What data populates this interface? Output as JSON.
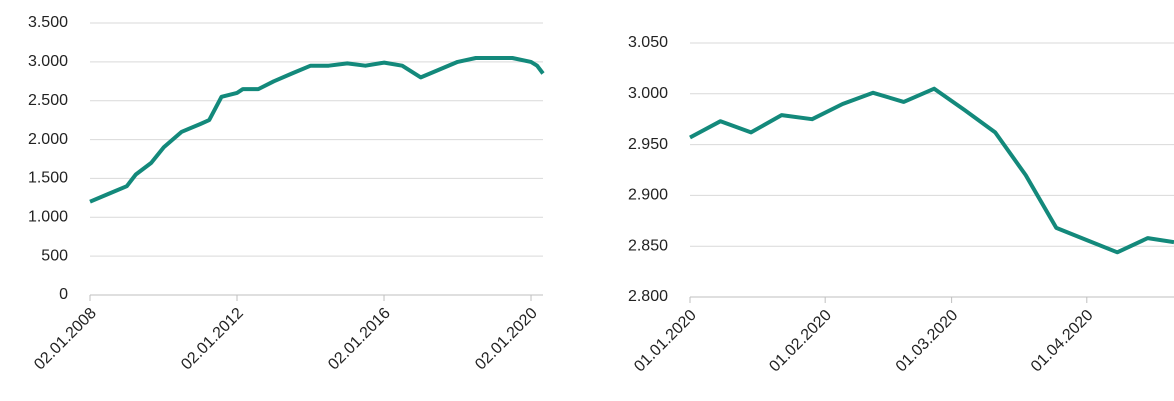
{
  "chart_data": [
    {
      "type": "line",
      "x": [
        "2008-01-02",
        "2008-07-01",
        "2009-01-02",
        "2009-04-01",
        "2009-09-01",
        "2010-01-04",
        "2010-07-01",
        "2011-01-03",
        "2011-04-01",
        "2011-08-01",
        "2012-01-02",
        "2012-03-01",
        "2012-08-01",
        "2013-01-02",
        "2013-07-01",
        "2014-01-02",
        "2014-07-01",
        "2015-01-02",
        "2015-07-01",
        "2016-01-04",
        "2016-07-01",
        "2017-01-02",
        "2017-07-03",
        "2018-01-02",
        "2018-07-02",
        "2019-01-02",
        "2019-07-01",
        "2020-01-02",
        "2020-03-02",
        "2020-04-30"
      ],
      "series": [
        {
          "color": "#13897b",
          "values": [
            1200,
            1300,
            1400,
            1550,
            1700,
            1900,
            2100,
            2200,
            2250,
            2550,
            2600,
            2650,
            2650,
            2750,
            2850,
            2950,
            2950,
            2980,
            2950,
            2990,
            2950,
            2800,
            2900,
            3000,
            3050,
            3050,
            3050,
            3000,
            2950,
            2850
          ]
        }
      ],
      "xlim": [
        "2008-01-02",
        "2020-04-30"
      ],
      "xticks": [
        {
          "value": "2008-01-02",
          "label": "02.01.2008"
        },
        {
          "value": "2012-01-02",
          "label": "02.01.2012"
        },
        {
          "value": "2016-01-02",
          "label": "02.01.2016"
        },
        {
          "value": "2020-01-02",
          "label": "02.01.2020"
        }
      ],
      "ylim": [
        0,
        3500
      ],
      "yticks": [
        0,
        {
          "value": 500,
          "label": "500"
        },
        {
          "value": 1000,
          "label": "1.000"
        },
        {
          "value": 1500,
          "label": "1.500"
        },
        {
          "value": 2000,
          "label": "2.000"
        },
        {
          "value": 2500,
          "label": "2.500"
        },
        {
          "value": 3000,
          "label": "3.000"
        },
        {
          "value": 3500,
          "label": "3.500"
        }
      ],
      "grid": true
    },
    {
      "type": "line",
      "x": [
        "2020-01-01",
        "2020-01-08",
        "2020-01-15",
        "2020-01-22",
        "2020-01-29",
        "2020-02-05",
        "2020-02-12",
        "2020-02-19",
        "2020-02-26",
        "2020-03-04",
        "2020-03-11",
        "2020-03-18",
        "2020-03-25",
        "2020-04-01",
        "2020-04-08",
        "2020-04-15",
        "2020-04-21"
      ],
      "series": [
        {
          "color": "#13897b",
          "values": [
            2957,
            2973,
            2962,
            2979,
            2975,
            2990,
            3001,
            2992,
            3005,
            2984,
            2962,
            2920,
            2868,
            2856,
            2844,
            2858,
            2854
          ]
        }
      ],
      "xlim": [
        "2020-01-01",
        "2020-04-21"
      ],
      "xticks": [
        {
          "value": "2020-01-01",
          "label": "01.01.2020"
        },
        {
          "value": "2020-02-01",
          "label": "01.02.2020"
        },
        {
          "value": "2020-03-01",
          "label": "01.03.2020"
        },
        {
          "value": "2020-04-01",
          "label": "01.04.2020"
        }
      ],
      "ylim": [
        2800,
        3050
      ],
      "yticks": [
        {
          "value": 2800,
          "label": "2.800"
        },
        {
          "value": 2850,
          "label": "2.850"
        },
        {
          "value": 2900,
          "label": "2.900"
        },
        {
          "value": 2950,
          "label": "2.950"
        },
        {
          "value": 3000,
          "label": "3.000"
        },
        {
          "value": 3050,
          "label": "3.050"
        }
      ],
      "grid": true
    }
  ]
}
